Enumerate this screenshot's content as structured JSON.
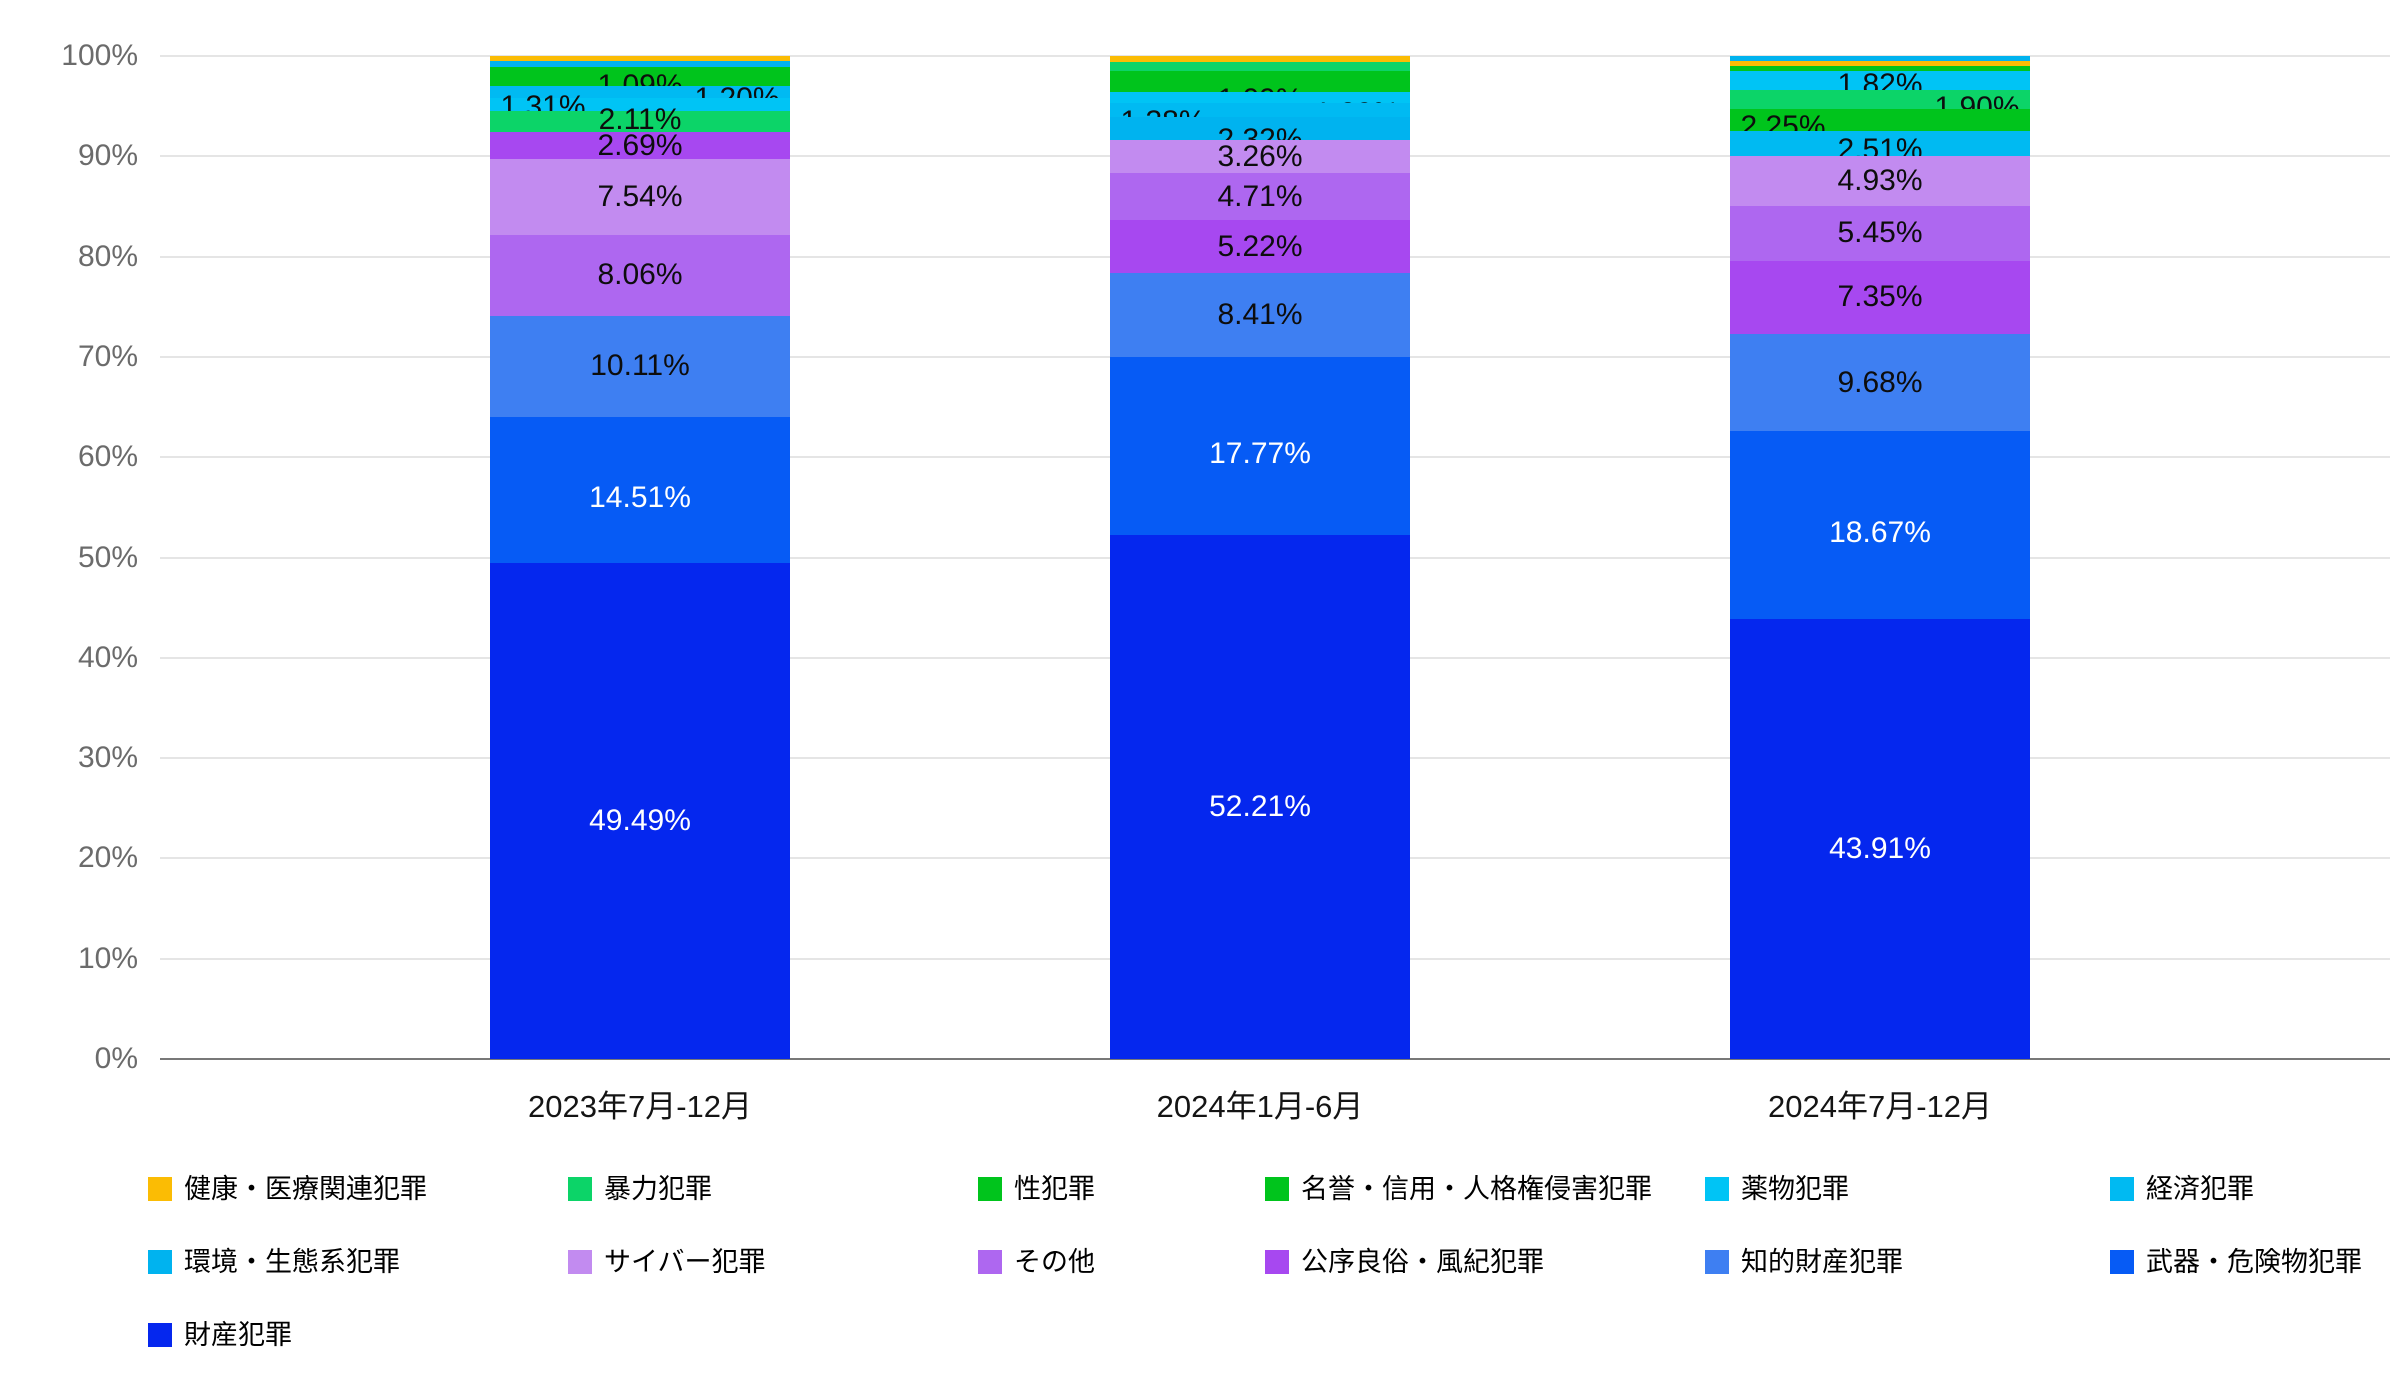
{
  "chart_data": {
    "type": "bar",
    "variant": "stacked-100-percent",
    "title": "",
    "grid": true,
    "y_axis": {
      "min": 0,
      "max": 100,
      "tick_step": 10,
      "tick_labels": [
        "0%",
        "10%",
        "20%",
        "30%",
        "40%",
        "50%",
        "60%",
        "70%",
        "80%",
        "90%",
        "100%"
      ]
    },
    "x_categories": [
      "2023年7月-12月",
      "2024年1月-6月",
      "2024年7月-12月"
    ],
    "legend_position": "bottom",
    "legend": [
      {
        "label": "健康・医療関連犯罪",
        "color": "#FBBC04"
      },
      {
        "label": "暴力犯罪",
        "color": "#0CD468"
      },
      {
        "label": "性犯罪",
        "color": "#00C41C"
      },
      {
        "label": "名誉・信用・人格権侵害犯罪",
        "color": "#00C41C"
      },
      {
        "label": "薬物犯罪",
        "color": "#00C4F5"
      },
      {
        "label": "経済犯罪",
        "color": "#00BAF2"
      },
      {
        "label": "環境・生態系犯罪",
        "color": "#00B3EF"
      },
      {
        "label": "サイバー犯罪",
        "color": "#C28BF0"
      },
      {
        "label": "その他",
        "color": "#AE67F0"
      },
      {
        "label": "公序良俗・風紀犯罪",
        "color": "#A748F0"
      },
      {
        "label": "知的財産犯罪",
        "color": "#3E7FF2"
      },
      {
        "label": "武器・危険物犯罪",
        "color": "#065BF5"
      },
      {
        "label": "財産犯罪",
        "color": "#0527EE"
      }
    ],
    "bars": [
      {
        "category": "2023年7月-12月",
        "segments_top_to_bottom": [
          {
            "name": "健康・医療関連犯罪",
            "color": "#FBBC04",
            "value": 0.5,
            "label": ""
          },
          {
            "name": "環境・生態系犯罪",
            "color": "#00B3EF",
            "value": 0.6,
            "label": ""
          },
          {
            "name": "名誉・信用・人格権侵害犯罪",
            "color": "#00C41C",
            "value": 0.79,
            "label": ""
          },
          {
            "name": "性犯罪",
            "color": "#00C41C",
            "value": 1.09,
            "label": "1.09%",
            "label_pos": "center",
            "label_dy": 6
          },
          {
            "name": "経済犯罪",
            "color": "#00BAF2",
            "value": 1.2,
            "label": "1.20%",
            "label_pos": "right",
            "label_dy": 7
          },
          {
            "name": "薬物犯罪",
            "color": "#00C4F5",
            "value": 1.31,
            "label": "1.31%",
            "label_pos": "left",
            "label_dy": 3
          },
          {
            "name": "暴力犯罪",
            "color": "#0CD468",
            "value": 2.11,
            "label": "2.11%",
            "label_pos": "center",
            "label_dy": -2
          },
          {
            "name": "公序良俗・風紀犯罪",
            "color": "#A748F0",
            "value": 2.69,
            "label": "2.69%"
          },
          {
            "name": "サイバー犯罪",
            "color": "#C28BF0",
            "value": 7.54,
            "label": "7.54%"
          },
          {
            "name": "その他",
            "color": "#AE67F0",
            "value": 8.06,
            "label": "8.06%"
          },
          {
            "name": "知的財産犯罪",
            "color": "#3E7FF2",
            "value": 10.11,
            "label": "10.11%"
          },
          {
            "name": "武器・危険物犯罪",
            "color": "#065BF5",
            "value": 14.51,
            "label": "14.51%",
            "label_color": "#ffffff",
            "label_dy": 8
          },
          {
            "name": "財産犯罪",
            "color": "#0527EE",
            "value": 49.49,
            "label": "49.49%",
            "label_color": "#ffffff",
            "label_dy": 10
          }
        ]
      },
      {
        "category": "2024年1月-6月",
        "segments_top_to_bottom": [
          {
            "name": "健康・医療関連犯罪",
            "color": "#FBBC04",
            "value": 0.58,
            "label": ""
          },
          {
            "name": "暴力犯罪",
            "color": "#0CD468",
            "value": 0.92,
            "label": ""
          },
          {
            "name": "名誉・信用・人格権侵害犯罪",
            "color": "#00C41C",
            "value": 1.04,
            "label": ""
          },
          {
            "name": "性犯罪",
            "color": "#00C41C",
            "value": 1.09,
            "label": "1.09%",
            "label_pos": "center",
            "label_dy": 13
          },
          {
            "name": "薬物犯罪",
            "color": "#00C4F5",
            "value": 1.09,
            "label": "1.09%",
            "label_pos": "right",
            "label_dy": 16
          },
          {
            "name": "経済犯罪",
            "color": "#00BAF2",
            "value": 1.38,
            "label": "1.38%",
            "label_pos": "left",
            "label_dy": 12
          },
          {
            "name": "環境・生態系犯罪",
            "color": "#00B3EF",
            "value": 2.32,
            "label": "2.32%",
            "label_pos": "center",
            "label_dy": 11
          },
          {
            "name": "サイバー犯罪",
            "color": "#C28BF0",
            "value": 3.26,
            "label": "3.26%"
          },
          {
            "name": "その他",
            "color": "#AE67F0",
            "value": 4.71,
            "label": "4.71%"
          },
          {
            "name": "公序良俗・風紀犯罪",
            "color": "#A748F0",
            "value": 5.22,
            "label": "5.22%"
          },
          {
            "name": "知的財産犯罪",
            "color": "#3E7FF2",
            "value": 8.41,
            "label": "8.41%"
          },
          {
            "name": "武器・危険物犯罪",
            "color": "#065BF5",
            "value": 17.77,
            "label": "17.77%",
            "label_color": "#ffffff",
            "label_dy": 8
          },
          {
            "name": "財産犯罪",
            "color": "#0527EE",
            "value": 52.21,
            "label": "52.21%",
            "label_color": "#ffffff",
            "label_dy": 10
          }
        ]
      },
      {
        "category": "2024年7月-12月",
        "segments_top_to_bottom": [
          {
            "name": "環境・生態系犯罪",
            "color": "#00B3EF",
            "value": 0.45,
            "label": ""
          },
          {
            "name": "健康・医療関連犯罪",
            "color": "#FBBC04",
            "value": 0.5,
            "label": ""
          },
          {
            "name": "名誉・信用・人格権侵害犯罪",
            "color": "#00C41C",
            "value": 0.58,
            "label": ""
          },
          {
            "name": "薬物犯罪",
            "color": "#00C4F5",
            "value": 1.82,
            "label": "1.82%",
            "label_pos": "center",
            "label_dy": 5
          },
          {
            "name": "暴力犯罪",
            "color": "#0CD468",
            "value": 1.9,
            "label": "1.90%",
            "label_pos": "right",
            "label_dy": 9
          },
          {
            "name": "性犯罪",
            "color": "#00C41C",
            "value": 2.25,
            "label": "2.25%",
            "label_pos": "left",
            "label_dy": 7
          },
          {
            "name": "経済犯罪",
            "color": "#00BAF2",
            "value": 2.51,
            "label": "2.51%",
            "label_pos": "center",
            "label_dy": 6
          },
          {
            "name": "サイバー犯罪",
            "color": "#C28BF0",
            "value": 4.93,
            "label": "4.93%"
          },
          {
            "name": "その他",
            "color": "#AE67F0",
            "value": 5.45,
            "label": "5.45%"
          },
          {
            "name": "公序良俗・風紀犯罪",
            "color": "#A748F0",
            "value": 7.35,
            "label": "7.35%"
          },
          {
            "name": "知的財産犯罪",
            "color": "#3E7FF2",
            "value": 9.68,
            "label": "9.68%"
          },
          {
            "name": "武器・危険物犯罪",
            "color": "#065BF5",
            "value": 18.67,
            "label": "18.67%",
            "label_color": "#ffffff",
            "label_dy": 8
          },
          {
            "name": "財産犯罪",
            "color": "#0527EE",
            "value": 43.91,
            "label": "43.91%",
            "label_color": "#ffffff",
            "label_dy": 10
          }
        ]
      }
    ]
  }
}
